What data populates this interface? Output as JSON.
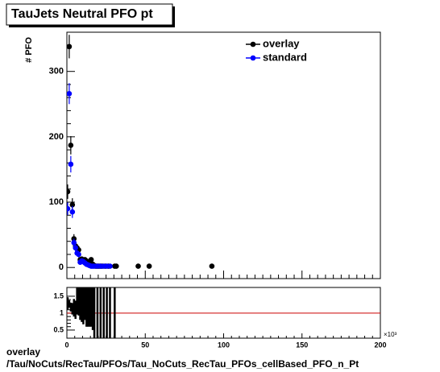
{
  "chart_data": [
    {
      "type": "scatter",
      "title": "TauJets Neutral PFO pt",
      "ylabel": "# PFO",
      "xlim": [
        0,
        200
      ],
      "ylim": [
        -17,
        360
      ],
      "yticks": [
        0,
        100,
        200,
        300
      ],
      "legend": "upper right",
      "series": [
        {
          "name": "overlay",
          "color": "#000000",
          "x": [
            0.5,
            1.5,
            2.5,
            3.5,
            4.5,
            5.5,
            6.5,
            7.5,
            8.5,
            9.5,
            10.5,
            11.5,
            12.5,
            13.5,
            14.5,
            15.5,
            16.5,
            17.5,
            18.5,
            19.5,
            20.5,
            21.5,
            22.5,
            24.5,
            26.5,
            30.5,
            31.5,
            45.5,
            52.5,
            92.5
          ],
          "values": [
            116,
            338,
            187,
            96,
            44,
            33,
            30,
            27,
            12,
            13,
            11,
            12,
            10,
            8,
            6,
            12,
            5,
            3,
            2,
            2,
            2,
            2,
            2,
            2,
            2,
            2,
            2,
            2,
            2,
            2
          ],
          "errors": [
            11,
            18,
            14,
            10,
            7,
            6,
            5.5,
            5,
            3.5,
            3.6,
            3.3,
            3.5,
            3.2,
            2.8,
            2.4,
            3.5,
            2.2,
            1.7,
            1.4,
            1.4,
            1.4,
            1.4,
            1.4,
            1.4,
            1.4,
            1.4,
            1.4,
            1.4,
            1.4,
            1.4
          ]
        },
        {
          "name": "standard",
          "color": "#0000ff",
          "x": [
            0.5,
            1.5,
            2.5,
            3.5,
            4.5,
            5.5,
            6.5,
            7.5,
            8.5,
            9.5,
            10.5,
            11.5,
            12.5,
            13.5,
            14.5,
            15.5,
            16.5,
            17.5,
            19.5,
            21.5,
            23.5,
            25.5,
            27.5
          ],
          "values": [
            90,
            266,
            158,
            85,
            38,
            30,
            22,
            20,
            8,
            10,
            9,
            7,
            5,
            4,
            3,
            2,
            2,
            2,
            2,
            2,
            2,
            2,
            2
          ],
          "errors": [
            9.5,
            16,
            12.6,
            9.2,
            6.2,
            5.5,
            4.7,
            4.5,
            2.8,
            3.2,
            3,
            2.6,
            2.2,
            2,
            1.7,
            1.4,
            1.4,
            1.4,
            1.4,
            1.4,
            1.4,
            1.4,
            1.4
          ]
        }
      ]
    },
    {
      "type": "scatter",
      "xlim": [
        0,
        200
      ],
      "ylim": [
        0.26,
        1.76
      ],
      "yticks": [
        0.5,
        1,
        1.5
      ],
      "xticks": [
        0,
        50,
        100,
        150,
        200
      ],
      "x_multiplier": "×10³",
      "reference_line": 1,
      "reference_color": "#cc0000",
      "series": [
        {
          "color": "#000000",
          "x": [
            0.5,
            1.5,
            2.5,
            3.5,
            4.5,
            5.5,
            6.5,
            7.5,
            8.5,
            9.5,
            10.5,
            11.5,
            12.5,
            13.5,
            14.5,
            15.5,
            16.5,
            17.5,
            19.5,
            21.5,
            23.5,
            25.5,
            27.5,
            30.5
          ],
          "values": [
            1.29,
            1.27,
            1.18,
            1.13,
            1.16,
            1.1,
            1.36,
            1.35,
            1.5,
            1.3,
            1.22,
            1.6,
            1.6,
            1.6,
            1.6,
            1.6,
            1.5,
            1,
            1,
            1,
            1,
            1,
            1,
            1
          ],
          "errors": [
            0.18,
            0.11,
            0.13,
            0.17,
            0.26,
            0.27,
            0.4,
            0.42,
            0.7,
            0.56,
            0.55,
            0.8,
            1,
            1,
            1,
            1,
            1,
            1,
            1,
            1,
            1,
            1,
            1,
            1
          ]
        }
      ]
    }
  ],
  "footer": {
    "label": "overlay",
    "path": "/Tau/NoCuts/RecTau/PFOs/Tau_NoCuts_RecTau_PFOs_cellBased_PFO_n_Pt"
  }
}
